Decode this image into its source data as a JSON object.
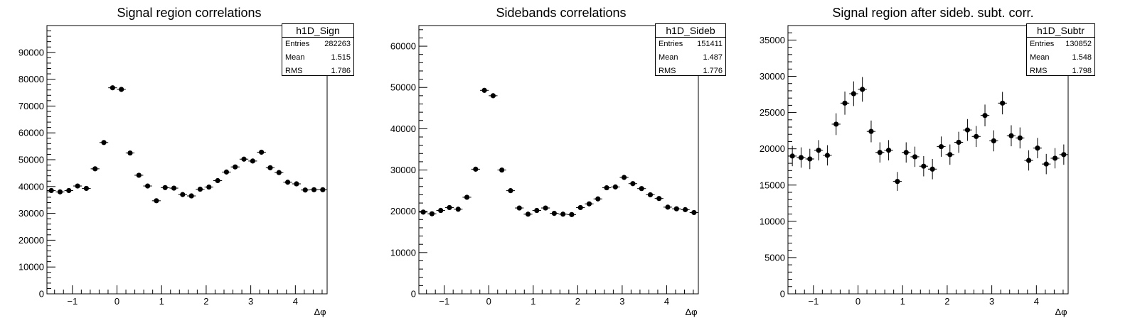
{
  "chart_data": [
    {
      "type": "scatter",
      "title": "Signal region correlations",
      "xlabel": "Δφ",
      "ylabel": "",
      "xlim": [
        -1.5708,
        4.7124
      ],
      "ylim": [
        0,
        100000
      ],
      "yticks": [
        0,
        10000,
        20000,
        30000,
        40000,
        50000,
        60000,
        70000,
        80000,
        90000
      ],
      "xticks": [
        -1,
        0,
        1,
        2,
        3,
        4
      ],
      "legend": "top-right",
      "grid": false,
      "stats": {
        "name": "h1D_Sign",
        "rows": [
          {
            "label": "Entries",
            "value": "282263"
          },
          {
            "label": "Mean",
            "value": "1.515"
          },
          {
            "label": "RMS",
            "value": "1.786"
          }
        ]
      },
      "x": [
        -1.4726,
        -1.2763,
        -1.0799,
        -0.8836,
        -0.6872,
        -0.4909,
        -0.2945,
        -0.0982,
        0.0982,
        0.2945,
        0.4909,
        0.6872,
        0.8836,
        1.0799,
        1.2763,
        1.4726,
        1.669,
        1.8653,
        2.0617,
        2.258,
        2.4544,
        2.6507,
        2.8471,
        3.0434,
        3.2398,
        3.4361,
        3.6325,
        3.8288,
        4.0252,
        4.2215,
        4.4179,
        4.6142
      ],
      "y": [
        38500,
        38000,
        38500,
        40200,
        39300,
        46600,
        56400,
        76800,
        76200,
        52500,
        44200,
        40200,
        34700,
        39600,
        39400,
        37000,
        36500,
        39000,
        39800,
        42200,
        45400,
        47300,
        50200,
        49500,
        52800,
        47000,
        45200,
        41600,
        41000,
        38700,
        38800,
        38800
      ],
      "yerr": [
        500,
        500,
        500,
        500,
        500,
        600,
        700,
        800,
        800,
        650,
        550,
        500,
        500,
        500,
        500,
        500,
        500,
        500,
        500,
        550,
        600,
        600,
        600,
        600,
        650,
        600,
        600,
        500,
        500,
        500,
        500,
        500
      ]
    },
    {
      "type": "scatter",
      "title": "Sidebands correlations",
      "xlabel": "Δφ",
      "ylabel": "",
      "xlim": [
        -1.5708,
        4.7124
      ],
      "ylim": [
        0,
        65000
      ],
      "yticks": [
        0,
        10000,
        20000,
        30000,
        40000,
        50000,
        60000
      ],
      "xticks": [
        -1,
        0,
        1,
        2,
        3,
        4
      ],
      "legend": "top-right",
      "grid": false,
      "stats": {
        "name": "h1D_Sideb",
        "rows": [
          {
            "label": "Entries",
            "value": "151411"
          },
          {
            "label": "Mean",
            "value": "1.487"
          },
          {
            "label": "RMS",
            "value": "1.776"
          }
        ]
      },
      "x": [
        -1.4726,
        -1.2763,
        -1.0799,
        -0.8836,
        -0.6872,
        -0.4909,
        -0.2945,
        -0.0982,
        0.0982,
        0.2945,
        0.4909,
        0.6872,
        0.8836,
        1.0799,
        1.2763,
        1.4726,
        1.669,
        1.8653,
        2.0617,
        2.258,
        2.4544,
        2.6507,
        2.8471,
        3.0434,
        3.2398,
        3.4361,
        3.6325,
        3.8288,
        4.0252,
        4.2215,
        4.4179,
        4.6142
      ],
      "y": [
        19800,
        19400,
        20200,
        20900,
        20500,
        23400,
        30200,
        49300,
        48000,
        30000,
        25000,
        20800,
        19300,
        20200,
        20800,
        19500,
        19300,
        19200,
        20900,
        21800,
        23000,
        25700,
        25900,
        28200,
        26700,
        25500,
        24000,
        23100,
        21000,
        20600,
        20400,
        19700
      ],
      "yerr": [
        300,
        300,
        300,
        300,
        300,
        350,
        450,
        600,
        600,
        450,
        350,
        300,
        300,
        300,
        300,
        300,
        300,
        300,
        300,
        300,
        350,
        350,
        350,
        400,
        350,
        350,
        350,
        300,
        300,
        300,
        300,
        300
      ]
    },
    {
      "type": "scatter",
      "title": "Signal region after sideb. subt. corr.",
      "xlabel": "Δφ",
      "ylabel": "",
      "xlim": [
        -1.5708,
        4.7124
      ],
      "ylim": [
        0,
        37000
      ],
      "yticks": [
        0,
        5000,
        10000,
        15000,
        20000,
        25000,
        30000,
        35000
      ],
      "xticks": [
        -1,
        0,
        1,
        2,
        3,
        4
      ],
      "legend": "top-right",
      "grid": false,
      "stats": {
        "name": "h1D_Subtr",
        "rows": [
          {
            "label": "Entries",
            "value": "130852"
          },
          {
            "label": "Mean",
            "value": "1.548"
          },
          {
            "label": "RMS",
            "value": "1.798"
          }
        ]
      },
      "x": [
        -1.4726,
        -1.2763,
        -1.0799,
        -0.8836,
        -0.6872,
        -0.4909,
        -0.2945,
        -0.0982,
        0.0982,
        0.2945,
        0.4909,
        0.6872,
        0.8836,
        1.0799,
        1.2763,
        1.4726,
        1.669,
        1.8653,
        2.0617,
        2.258,
        2.4544,
        2.6507,
        2.8471,
        3.0434,
        3.2398,
        3.4361,
        3.6325,
        3.8288,
        4.0252,
        4.2215,
        4.4179,
        4.6142
      ],
      "y": [
        19000,
        18800,
        18600,
        19800,
        19100,
        23400,
        26300,
        27600,
        28200,
        22400,
        19500,
        19800,
        15500,
        19500,
        18900,
        17600,
        17200,
        20300,
        19200,
        20900,
        22600,
        21700,
        24600,
        21100,
        26300,
        21800,
        21500,
        18400,
        20100,
        17900,
        18700,
        19200
      ],
      "yerr": [
        1400,
        1400,
        1400,
        1400,
        1400,
        1500,
        1600,
        1700,
        1700,
        1500,
        1400,
        1400,
        1300,
        1400,
        1400,
        1400,
        1400,
        1400,
        1400,
        1450,
        1500,
        1450,
        1500,
        1450,
        1550,
        1450,
        1450,
        1400,
        1400,
        1400,
        1400,
        1400
      ]
    }
  ]
}
